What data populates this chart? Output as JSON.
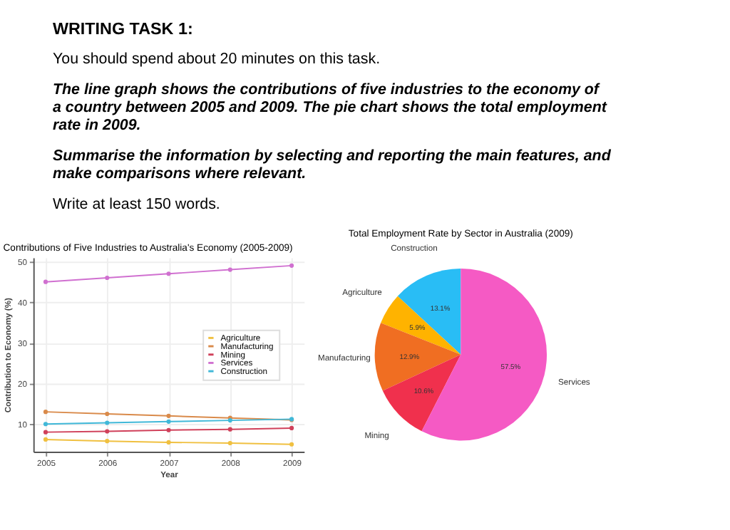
{
  "chart_data": [
    {
      "type": "other",
      "title": "WRITING TASK 1:",
      "annotations": [
        "You should spend about 20 minutes on this task.",
        "The line graph shows the contributions of five industries to the economy of a country between 2005 and 2009. The pie chart shows the total employment rate in 2009.",
        "Summarise the information by selecting and reporting the main features, and make comparisons where relevant.",
        "Write at least 150 words."
      ]
    },
    {
      "type": "line",
      "title": "Contributions of Five Industries to Australia's Economy (2005-2009)",
      "xlabel": "Year",
      "ylabel": "Contribution to Economy (%)",
      "x": [
        2005,
        2006,
        2007,
        2008,
        2009
      ],
      "xlim": [
        2004.8,
        2009.2
      ],
      "xticks": [
        2005,
        2006,
        2007,
        2008,
        2009
      ],
      "ylim": [
        3.2,
        51
      ],
      "yticks": [
        10,
        20,
        30,
        40,
        50
      ],
      "series": [
        {
          "name": "Agriculture",
          "color": "#f0c040",
          "values": [
            6.2,
            5.8,
            5.5,
            5.3,
            5.0
          ]
        },
        {
          "name": "Manufacturing",
          "color": "#d98a4a",
          "values": [
            13,
            12.5,
            12,
            11.5,
            11
          ]
        },
        {
          "name": "Mining",
          "color": "#d0405a",
          "values": [
            8,
            8.2,
            8.5,
            8.7,
            9
          ]
        },
        {
          "name": "Services",
          "color": "#d070d0",
          "values": [
            45,
            46,
            47,
            48,
            49
          ]
        },
        {
          "name": "Construction",
          "color": "#40b8d8",
          "values": [
            10,
            10.3,
            10.6,
            10.9,
            11.2
          ]
        }
      ],
      "grid": true,
      "legend": "right",
      "marker": "circle",
      "line_style": "solid"
    },
    {
      "type": "pie",
      "title": "Total Employment Rate by Sector in Australia (2009)",
      "categories": [
        "Construction",
        "Agriculture",
        "Manufacturing",
        "Mining",
        "Services"
      ],
      "values": [
        13.1,
        5.9,
        12.9,
        10.6,
        57.5
      ],
      "colors": [
        "#29bdf5",
        "#ffb300",
        "#f06e22",
        "#f0304d",
        "#f55ac4"
      ],
      "value_labels": [
        "13.1%",
        "5.9%",
        "12.9%",
        "10.6%",
        "57.5%"
      ]
    }
  ]
}
